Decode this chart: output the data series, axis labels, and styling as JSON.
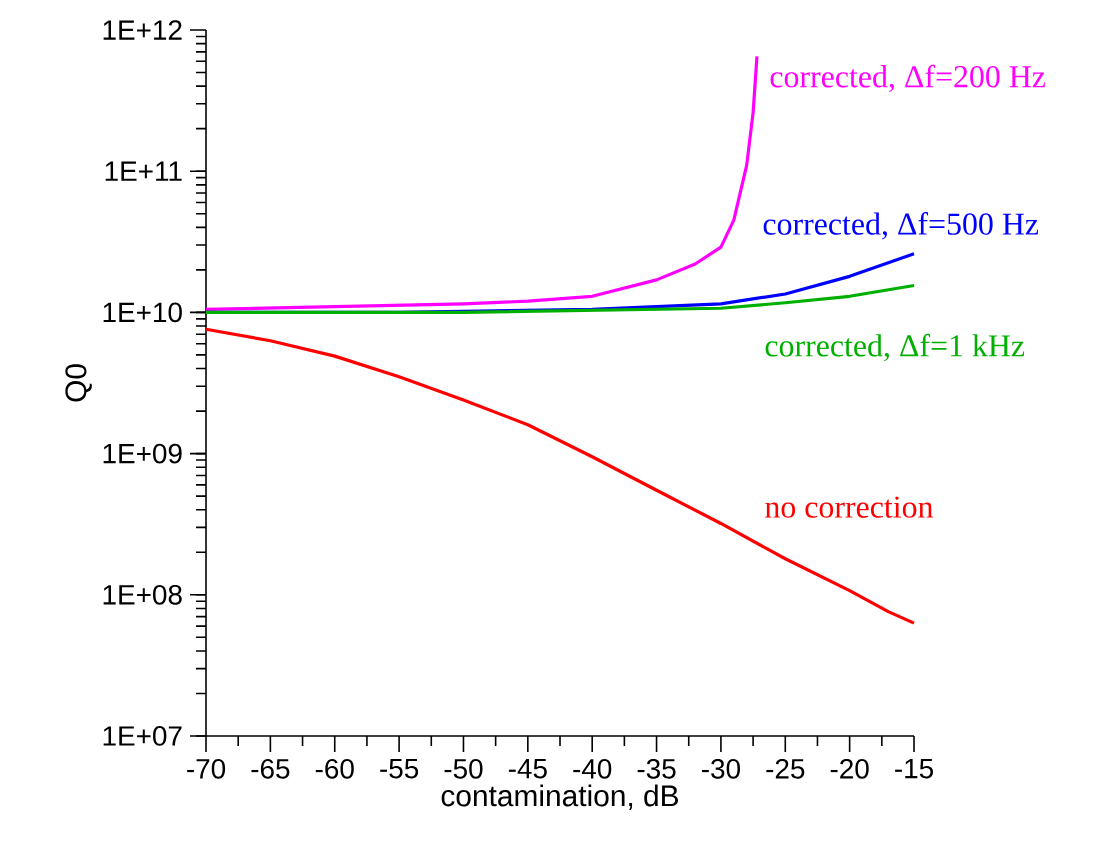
{
  "chart_data": {
    "type": "line",
    "xlabel": "contamination, dB",
    "ylabel": "Q0",
    "log": "y",
    "grid": false,
    "marker": "none",
    "line_style": "solid",
    "xlim": [
      -70,
      -15
    ],
    "xticks": [
      -70,
      -65,
      -60,
      -55,
      -50,
      -45,
      -40,
      -35,
      -30,
      -25,
      -20,
      -15
    ],
    "ylim": [
      10000000.0,
      1000000000000.0
    ],
    "yticks": [
      {
        "value": 10000000.0,
        "label": "1E+07"
      },
      {
        "value": 100000000.0,
        "label": "1E+08"
      },
      {
        "value": 1000000000.0,
        "label": "1E+09"
      },
      {
        "value": 10000000000.0,
        "label": "1E+10"
      },
      {
        "value": 100000000000.0,
        "label": "1E+11"
      },
      {
        "value": 1000000000000.0,
        "label": "1E+12"
      }
    ],
    "series": [
      {
        "name": "corrected, Δf=200 Hz",
        "color": "#ff00ff",
        "x": [
          -70,
          -60,
          -50,
          -45,
          -40,
          -35,
          -32,
          -30,
          -29,
          -28,
          -27.5,
          -27.2
        ],
        "values": [
          10500000000.0,
          11000000000.0,
          11500000000.0,
          12000000000.0,
          13000000000.0,
          17000000000.0,
          22000000000.0,
          29000000000.0,
          45000000000.0,
          110000000000.0,
          260000000000.0,
          650000000000.0
        ]
      },
      {
        "name": "corrected, Δf=500 Hz",
        "color": "#0000ff",
        "x": [
          -70,
          -55,
          -40,
          -30,
          -25,
          -20,
          -15
        ],
        "values": [
          10000000000.0,
          10000000000.0,
          10500000000.0,
          11500000000.0,
          13500000000.0,
          18000000000.0,
          26000000000.0
        ]
      },
      {
        "name": "corrected, Δf=1 kHz",
        "color": "#00b000",
        "x": [
          -70,
          -50,
          -30,
          -25,
          -20,
          -15
        ],
        "values": [
          10000000000.0,
          10000000000.0,
          10700000000.0,
          11700000000.0,
          13000000000.0,
          15500000000.0
        ]
      },
      {
        "name": "no correction",
        "color": "#ff0000",
        "x": [
          -70,
          -65,
          -60,
          -55,
          -50,
          -45,
          -40,
          -35,
          -30,
          -25,
          -20,
          -17,
          -15
        ],
        "values": [
          7600000000.0,
          6300000000.0,
          4900000000.0,
          3500000000.0,
          2400000000.0,
          1600000000.0,
          950000000.0,
          550000000.0,
          320000000.0,
          180000000.0,
          107000000.0,
          76000000.0,
          63000000.0
        ]
      }
    ]
  }
}
